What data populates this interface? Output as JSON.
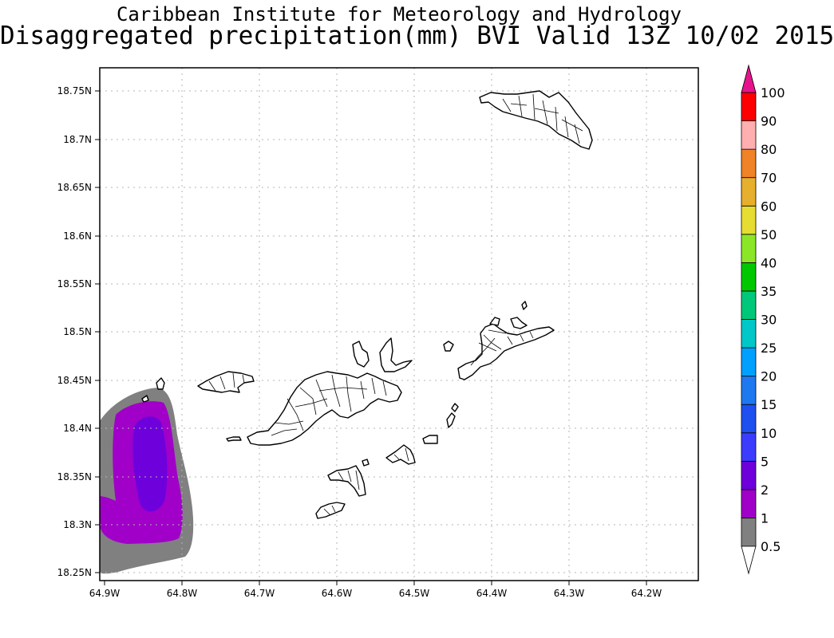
{
  "header": {
    "institute": "Caribbean Institute for Meteorology and Hydrology",
    "product": "Disaggregated precipitation(mm) BVI Valid 13Z 10/02 2015"
  },
  "map": {
    "lon_ticks": [
      "64.9W",
      "64.8W",
      "64.7W",
      "64.6W",
      "64.5W",
      "64.4W",
      "64.3W",
      "64.2W"
    ],
    "lat_ticks": [
      "18.75N",
      "18.7N",
      "18.65N",
      "18.6N",
      "18.55N",
      "18.5N",
      "18.45N",
      "18.4N",
      "18.35N",
      "18.3N",
      "18.25N"
    ],
    "grid": "dotted",
    "precip_max_value": "between 2 and 5 mm (SW corner)"
  },
  "colorbar": {
    "levels": [
      {
        "label": "0.5",
        "color": "#808080"
      },
      {
        "label": "1",
        "color": "#a000c8"
      },
      {
        "label": "2",
        "color": "#6e00dc"
      },
      {
        "label": "5",
        "color": "#3c3cff"
      },
      {
        "label": "10",
        "color": "#1e50f0"
      },
      {
        "label": "15",
        "color": "#1e78f0"
      },
      {
        "label": "20",
        "color": "#00a0ff"
      },
      {
        "label": "25",
        "color": "#00c8c8"
      },
      {
        "label": "30",
        "color": "#00c87a"
      },
      {
        "label": "35",
        "color": "#00c800"
      },
      {
        "label": "40",
        "color": "#8ce628"
      },
      {
        "label": "50",
        "color": "#e6dc32"
      },
      {
        "label": "60",
        "color": "#e6af2d"
      },
      {
        "label": "70",
        "color": "#f08228"
      },
      {
        "label": "80",
        "color": "#ffafaf"
      },
      {
        "label": "90",
        "color": "#ff0000"
      },
      {
        "label": "100",
        "color": "#f03c3c"
      }
    ],
    "top_triangle_color": "#e6148c",
    "bottom_triangle_color": "#ffffff"
  }
}
